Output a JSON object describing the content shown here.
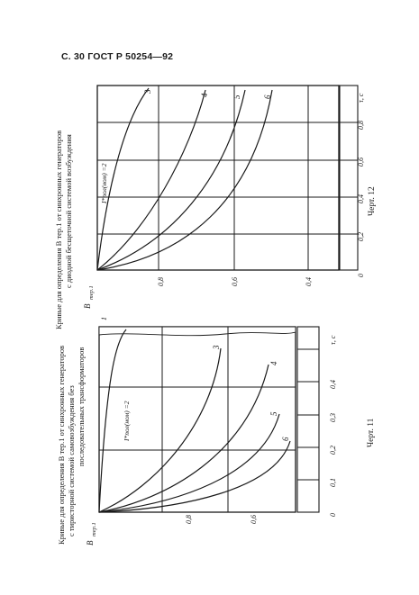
{
  "header": {
    "page_ref": "С. 30  ГОСТ Р 50254—92"
  },
  "figure_11": {
    "title_line1": "Кривые для определения B тер.1 от синхронных генераторов",
    "title_line2": "с тиристорной системой самовозбуждения без",
    "title_line3": "последовательных трансформаторов",
    "caption": "Черт. 11",
    "axis_symbol": "B",
    "axis_symbol_sub": "тер.1",
    "x_axis_unit": "τ, c",
    "x_tick_labels": [
      "0",
      "0,1",
      "0,2",
      "0,3",
      "0,4"
    ],
    "y_tick_labels": [
      "0,6",
      "0,8"
    ],
    "param_label": "I*пол(ном) =2",
    "curve_labels": [
      "1",
      "3",
      "4",
      "5",
      "6"
    ]
  },
  "figure_12": {
    "title_line1": "Кривые для определения B тер.1 от синхронных генераторов",
    "title_line2": "с диодной бесщеточной системой возбуждения",
    "caption": "Черт. 12",
    "axis_symbol": "B",
    "axis_symbol_sub": "тер.1",
    "x_axis_unit": "τ, c",
    "x_tick_labels": [
      "0",
      "0,2",
      "0,4",
      "0,6",
      "0,8"
    ],
    "y_tick_labels": [
      "0,4",
      "0,6",
      "0,8"
    ],
    "param_label": "I*пол(ном) =2",
    "curve_labels": [
      "3",
      "4",
      "5",
      "6"
    ]
  }
}
